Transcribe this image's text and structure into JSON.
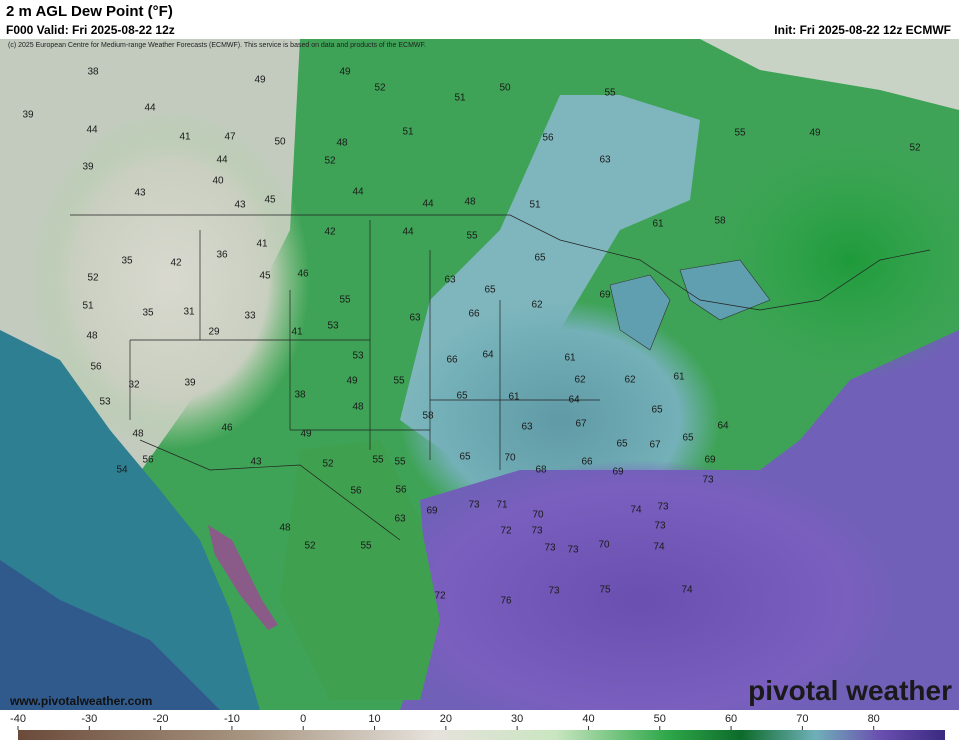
{
  "title": "2 m AGL Dew Point (°F)",
  "valid_time": "F000 Valid: Fri 2025-08-22 12z",
  "init_time": "Init: Fri 2025-08-22 12z ECMWF",
  "copyright": "(c) 2025 European Centre for Medium-range Weather Forecasts (ECMWF). This service is based on data and products of the ECMWF.",
  "website": "www.pivotalweather.com",
  "logo": "pivotal weather",
  "map_values": [
    38,
    49,
    49,
    52,
    51,
    50,
    55,
    39,
    44,
    44,
    41,
    47,
    50,
    48,
    51,
    56,
    39,
    44,
    52,
    63,
    43,
    40,
    43,
    45,
    44,
    44,
    48,
    51,
    55,
    49,
    52,
    35,
    42,
    36,
    41,
    42,
    44,
    55,
    65,
    61,
    58,
    52,
    45,
    46,
    55,
    63,
    65,
    62,
    69,
    51,
    35,
    31,
    29,
    33,
    41,
    53,
    63,
    66,
    48,
    53,
    66,
    64,
    61,
    56,
    32,
    39,
    38,
    49,
    55,
    62,
    62,
    61,
    53,
    48,
    58,
    65,
    61,
    64,
    65,
    48,
    46,
    49,
    63,
    67,
    65,
    67,
    64,
    43,
    52,
    55,
    55,
    65,
    70,
    68,
    66,
    69,
    65,
    69,
    73,
    54,
    56,
    56,
    56,
    73,
    71,
    74,
    73,
    70,
    72,
    73,
    73,
    63,
    69,
    48,
    52,
    55,
    73,
    73,
    70,
    74,
    72,
    76,
    73,
    75,
    74
  ],
  "colorbar": {
    "lim": [
      -40,
      90
    ],
    "ticks": [
      -40,
      -30,
      -20,
      -10,
      0,
      10,
      20,
      30,
      40,
      50,
      60,
      70,
      80
    ]
  }
}
